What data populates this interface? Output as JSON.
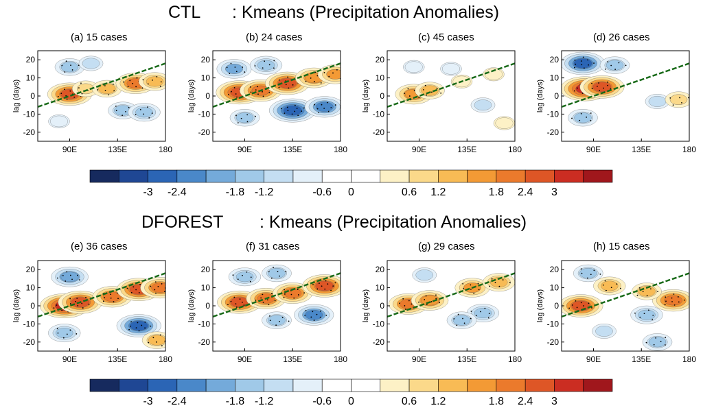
{
  "figure": {
    "rows": [
      {
        "title_left": "CTL",
        "title_right": ": Kmeans (Precipitation Anomalies)",
        "panels": [
          {
            "title": "(a) 15 cases"
          },
          {
            "title": "(b) 24 cases"
          },
          {
            "title": "(c) 45 cases"
          },
          {
            "title": "(d) 26 cases"
          }
        ]
      },
      {
        "title_left": "DFOREST",
        "title_right": ": Kmeans (Precipitation Anomalies)",
        "panels": [
          {
            "title": "(e) 36 cases"
          },
          {
            "title": "(f) 31 cases"
          },
          {
            "title": "(g) 29 cases"
          },
          {
            "title": "(h) 15 cases"
          }
        ]
      }
    ],
    "ylabel": "lag (days)",
    "colorbar": {
      "levels": [
        "-3",
        "-2.4",
        "-1.8",
        "-1.2",
        "-0.6",
        "0",
        "0.6",
        "1.2",
        "1.8",
        "2.4",
        "3"
      ],
      "colors": [
        "#162a5e",
        "#1f4794",
        "#2b65b5",
        "#4a88c9",
        "#74aada",
        "#a0c9e8",
        "#c4def2",
        "#e4f0f9",
        "#ffffff",
        "#ffffff",
        "#fdf1c6",
        "#fbd98a",
        "#f8bb55",
        "#f39a35",
        "#eb7a2c",
        "#de5626",
        "#cb2d22",
        "#a0171c"
      ]
    }
  },
  "chart_data": [
    {
      "type": "heatmap",
      "title": "(a) 15 cases",
      "xlabel": "",
      "ylabel": "lag (days)",
      "xlim": [
        60,
        180
      ],
      "ylim": [
        -25,
        25
      ],
      "xticks": [
        "90E",
        "135E",
        "180"
      ],
      "yticks": [
        20,
        10,
        0,
        -10,
        -20
      ],
      "trend_line": {
        "x": [
          60,
          180
        ],
        "y": [
          -6,
          18
        ]
      },
      "features": [
        {
          "lon": 90,
          "lag": 1,
          "value": 2.6
        },
        {
          "lon": 105,
          "lag": 4,
          "value": 1.2
        },
        {
          "lon": 125,
          "lag": 4,
          "value": 1.4
        },
        {
          "lon": 152,
          "lag": 7,
          "value": 2.2
        },
        {
          "lon": 170,
          "lag": 8,
          "value": 1.6
        },
        {
          "lon": 90,
          "lag": 16,
          "value": -1.4
        },
        {
          "lon": 110,
          "lag": 18,
          "value": -1.0
        },
        {
          "lon": 140,
          "lag": -8,
          "value": -1.4
        },
        {
          "lon": 160,
          "lag": -9,
          "value": -1.6
        },
        {
          "lon": 80,
          "lag": -14,
          "value": -0.8
        }
      ]
    },
    {
      "type": "heatmap",
      "title": "(b) 24 cases",
      "xlabel": "",
      "ylabel": "lag (days)",
      "xlim": [
        60,
        180
      ],
      "ylim": [
        -25,
        25
      ],
      "xticks": [
        "90E",
        "135E",
        "180"
      ],
      "yticks": [
        20,
        10,
        0,
        -10,
        -20
      ],
      "trend_line": {
        "x": [
          60,
          180
        ],
        "y": [
          -6,
          18
        ]
      },
      "features": [
        {
          "lon": 85,
          "lag": 2,
          "value": 2.8
        },
        {
          "lon": 105,
          "lag": 3,
          "value": 2.4
        },
        {
          "lon": 130,
          "lag": 7,
          "value": 2.6
        },
        {
          "lon": 155,
          "lag": 10,
          "value": 2.0
        },
        {
          "lon": 175,
          "lag": 12,
          "value": 1.8
        },
        {
          "lon": 80,
          "lag": 15,
          "value": -1.8
        },
        {
          "lon": 110,
          "lag": 17,
          "value": -1.6
        },
        {
          "lon": 135,
          "lag": -8,
          "value": -2.8
        },
        {
          "lon": 165,
          "lag": -6,
          "value": -2.2
        },
        {
          "lon": 90,
          "lag": -12,
          "value": -1.4
        }
      ]
    },
    {
      "type": "heatmap",
      "title": "(c) 45 cases",
      "xlabel": "",
      "ylabel": "lag (days)",
      "xlim": [
        60,
        180
      ],
      "ylim": [
        -25,
        25
      ],
      "xticks": [
        "90E",
        "135E",
        "180"
      ],
      "yticks": [
        20,
        10,
        0,
        -10,
        -20
      ],
      "trend_line": {
        "x": [
          60,
          180
        ],
        "y": [
          -6,
          18
        ]
      },
      "features": [
        {
          "lon": 85,
          "lag": 1,
          "value": 2.0
        },
        {
          "lon": 100,
          "lag": 3,
          "value": 1.4
        },
        {
          "lon": 130,
          "lag": 8,
          "value": 0.8
        },
        {
          "lon": 160,
          "lag": 12,
          "value": 0.8
        },
        {
          "lon": 85,
          "lag": 16,
          "value": -0.8
        },
        {
          "lon": 120,
          "lag": 15,
          "value": -0.8
        },
        {
          "lon": 150,
          "lag": -5,
          "value": -1.0
        },
        {
          "lon": 170,
          "lag": -15,
          "value": 0.8
        }
      ]
    },
    {
      "type": "heatmap",
      "title": "(d) 26 cases",
      "xlabel": "",
      "ylabel": "lag (days)",
      "xlim": [
        60,
        180
      ],
      "ylim": [
        -25,
        25
      ],
      "xticks": [
        "90E",
        "135E",
        "180"
      ],
      "yticks": [
        20,
        10,
        0,
        -10,
        -20
      ],
      "trend_line": {
        "x": [
          60,
          180
        ],
        "y": [
          -6,
          18
        ]
      },
      "features": [
        {
          "lon": 82,
          "lag": 4,
          "value": 3.0
        },
        {
          "lon": 98,
          "lag": 5,
          "value": 2.6
        },
        {
          "lon": 80,
          "lag": 18,
          "value": -2.6
        },
        {
          "lon": 110,
          "lag": 17,
          "value": -1.4
        },
        {
          "lon": 150,
          "lag": -3,
          "value": -1.0
        },
        {
          "lon": 170,
          "lag": -2,
          "value": 1.2
        },
        {
          "lon": 80,
          "lag": -12,
          "value": -1.4
        }
      ]
    },
    {
      "type": "heatmap",
      "title": "(e) 36 cases",
      "xlabel": "",
      "ylabel": "lag (days)",
      "xlim": [
        60,
        180
      ],
      "ylim": [
        -25,
        25
      ],
      "xticks": [
        "90E",
        "135E",
        "180"
      ],
      "yticks": [
        20,
        10,
        0,
        -10,
        -20
      ],
      "trend_line": {
        "x": [
          60,
          180
        ],
        "y": [
          -6,
          18
        ]
      },
      "features": [
        {
          "lon": 85,
          "lag": 0,
          "value": 3.0
        },
        {
          "lon": 100,
          "lag": 2,
          "value": 2.6
        },
        {
          "lon": 130,
          "lag": 5,
          "value": 2.2
        },
        {
          "lon": 155,
          "lag": 9,
          "value": 2.6
        },
        {
          "lon": 175,
          "lag": 10,
          "value": 2.2
        },
        {
          "lon": 90,
          "lag": 16,
          "value": -2.0
        },
        {
          "lon": 155,
          "lag": -11,
          "value": -2.6
        },
        {
          "lon": 85,
          "lag": -15,
          "value": -1.6
        },
        {
          "lon": 172,
          "lag": -19,
          "value": 1.4
        }
      ]
    },
    {
      "type": "heatmap",
      "title": "(f) 31 cases",
      "xlabel": "",
      "ylabel": "lag (days)",
      "xlim": [
        60,
        180
      ],
      "ylim": [
        -25,
        25
      ],
      "xticks": [
        "90E",
        "135E",
        "180"
      ],
      "yticks": [
        20,
        10,
        0,
        -10,
        -20
      ],
      "trend_line": {
        "x": [
          60,
          180
        ],
        "y": [
          -6,
          18
        ]
      },
      "features": [
        {
          "lon": 85,
          "lag": 2,
          "value": 2.6
        },
        {
          "lon": 110,
          "lag": 4,
          "value": 2.2
        },
        {
          "lon": 135,
          "lag": 7,
          "value": 2.2
        },
        {
          "lon": 165,
          "lag": 11,
          "value": 2.6
        },
        {
          "lon": 90,
          "lag": 16,
          "value": -1.6
        },
        {
          "lon": 120,
          "lag": 18,
          "value": -1.4
        },
        {
          "lon": 155,
          "lag": -5,
          "value": -2.2
        },
        {
          "lon": 120,
          "lag": -8,
          "value": -1.4
        }
      ]
    },
    {
      "type": "heatmap",
      "title": "(g) 29 cases",
      "xlabel": "",
      "ylabel": "lag (days)",
      "xlim": [
        60,
        180
      ],
      "ylim": [
        -25,
        25
      ],
      "xticks": [
        "90E",
        "135E",
        "180"
      ],
      "yticks": [
        20,
        10,
        0,
        -10,
        -20
      ],
      "trend_line": {
        "x": [
          60,
          180
        ],
        "y": [
          -6,
          18
        ]
      },
      "features": [
        {
          "lon": 80,
          "lag": 1,
          "value": 2.2
        },
        {
          "lon": 100,
          "lag": 3,
          "value": 2.0
        },
        {
          "lon": 140,
          "lag": 10,
          "value": 1.8
        },
        {
          "lon": 165,
          "lag": 13,
          "value": 1.6
        },
        {
          "lon": 150,
          "lag": -4,
          "value": -1.6
        },
        {
          "lon": 130,
          "lag": -8,
          "value": -1.4
        },
        {
          "lon": 95,
          "lag": 17,
          "value": -1.0
        }
      ]
    },
    {
      "type": "heatmap",
      "title": "(h) 15 cases",
      "xlabel": "",
      "ylabel": "lag (days)",
      "xlim": [
        60,
        180
      ],
      "ylim": [
        -25,
        25
      ],
      "xticks": [
        "90E",
        "135E",
        "180"
      ],
      "yticks": [
        20,
        10,
        0,
        -10,
        -20
      ],
      "trend_line": {
        "x": [
          60,
          180
        ],
        "y": [
          -6,
          18
        ]
      },
      "features": [
        {
          "lon": 78,
          "lag": 0,
          "value": 2.6
        },
        {
          "lon": 105,
          "lag": 11,
          "value": 1.6
        },
        {
          "lon": 165,
          "lag": 3,
          "value": 2.4
        },
        {
          "lon": 140,
          "lag": 8,
          "value": 1.4
        },
        {
          "lon": 140,
          "lag": -5,
          "value": -1.6
        },
        {
          "lon": 100,
          "lag": -14,
          "value": -1.0
        },
        {
          "lon": 150,
          "lag": -20,
          "value": -1.4
        },
        {
          "lon": 85,
          "lag": 18,
          "value": -1.4
        }
      ]
    }
  ]
}
